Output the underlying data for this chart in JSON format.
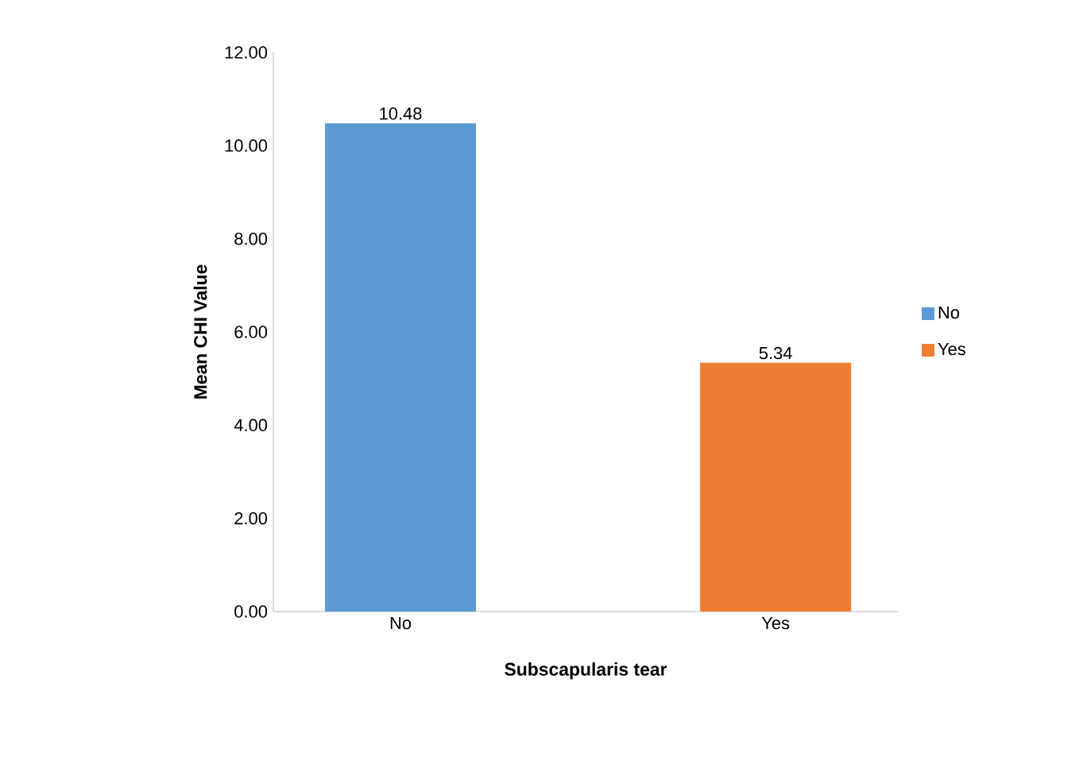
{
  "chart_data": {
    "type": "bar",
    "xlabel": "Subscapularis tear",
    "ylabel": "Mean CHI Value",
    "categories": [
      "No",
      "Yes"
    ],
    "series": [
      {
        "name": "No",
        "color": "#5b9bd5",
        "values": [
          10.48,
          null
        ]
      },
      {
        "name": "Yes",
        "color": "#ed7d31",
        "values": [
          null,
          5.34
        ]
      }
    ],
    "ylim": [
      0,
      12
    ],
    "yticks": [
      {
        "value": 0,
        "label": "0.00"
      },
      {
        "value": 2,
        "label": "2.00"
      },
      {
        "value": 4,
        "label": "4.00"
      },
      {
        "value": 6,
        "label": "6.00"
      },
      {
        "value": 8,
        "label": "8.00"
      },
      {
        "value": 10,
        "label": "10.00"
      },
      {
        "value": 12,
        "label": "12.00"
      }
    ],
    "data_labels": true,
    "legend": "right"
  }
}
